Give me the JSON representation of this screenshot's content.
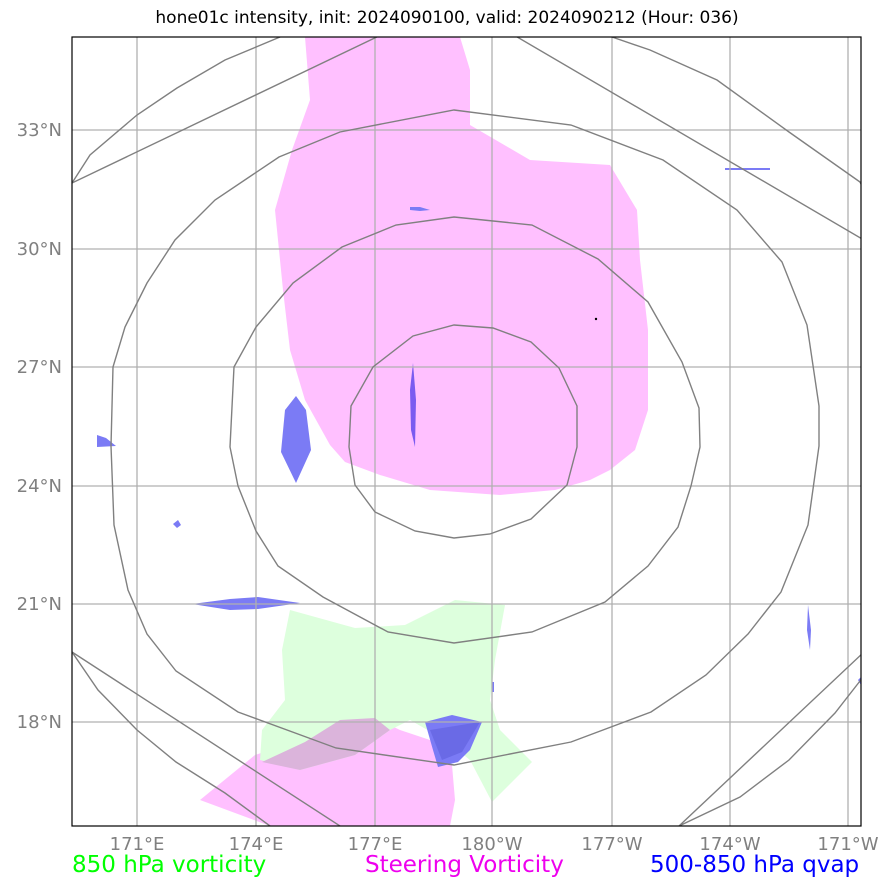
{
  "title": "hone01c intensity, init: 2024090100, valid: 2024090212 (Hour: 036)",
  "axes": {
    "lat_labels": [
      "33°N",
      "30°N",
      "27°N",
      "24°N",
      "21°N",
      "18°N"
    ],
    "lon_labels": [
      "171°E",
      "174°E",
      "177°E",
      "180°W",
      "177°W",
      "174°W",
      "171°W"
    ]
  },
  "legend": {
    "vort850": "850 hPa vorticity",
    "steering": "Steering Vorticity",
    "qvap": "500-850 hPa qvap"
  },
  "colors": {
    "vort850": "#00ff00",
    "steering": "#ee00ee",
    "qvap": "#0000ff",
    "steering_fill": "#ffc0ff",
    "vort850_fill": "#ddffdd",
    "qvap_fill": "#7b7bf5",
    "contour": "#808080",
    "grid": "#b0b0b0"
  }
}
